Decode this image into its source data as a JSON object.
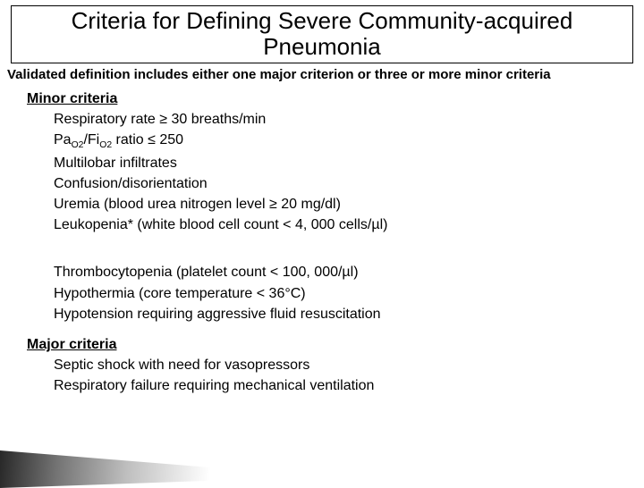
{
  "title": "Criteria for Defining Severe Community-acquired Pneumonia",
  "subtitle": "Validated definition includes either one major criterion or three or more minor criteria",
  "minor": {
    "heading": "Minor criteria",
    "items_a": [
      "Respiratory rate ≥ 30 breaths/min",
      "Pa|O2|/Fi|O2| ratio ≤ 250",
      "Multilobar infiltrates",
      "Confusion/disorientation",
      "Uremia (blood urea nitrogen level ≥ 20 mg/dl)",
      "Leukopenia* (white blood cell count < 4, 000 cells/µl)"
    ],
    "items_b": [
      "Thrombocytopenia (platelet count < 100, 000/µl)",
      "Hypothermia (core temperature < 36°C)",
      "Hypotension requiring aggressive fluid resuscitation"
    ]
  },
  "major": {
    "heading": "Major criteria",
    "items": [
      "Septic shock with need for vasopressors",
      "Respiratory failure requiring mechanical ventilation"
    ]
  },
  "colors": {
    "bg": "#ffffff",
    "text": "#000000",
    "border": "#000000"
  },
  "fontsize": {
    "title": 26,
    "subtitle": 15,
    "heading": 16,
    "item": 16
  }
}
